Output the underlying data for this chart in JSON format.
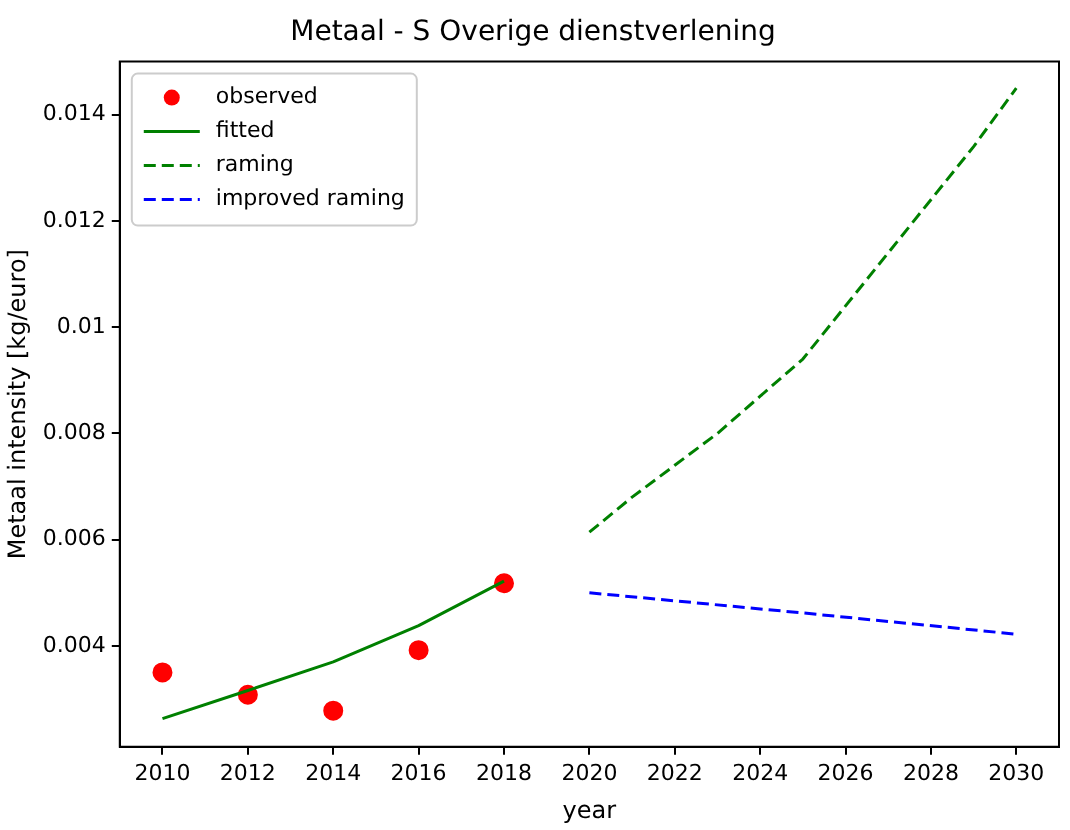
{
  "chart_data": {
    "type": "scatter",
    "title": "Metaal - S Overige dienstverlening",
    "xlabel": "year",
    "ylabel": "Metaal intensity [kg/euro]",
    "xlim": [
      2009,
      2031
    ],
    "xticks": [
      2010,
      2012,
      2014,
      2016,
      2018,
      2020,
      2022,
      2024,
      2026,
      2028,
      2030
    ],
    "ylim": [
      0.0021,
      0.015
    ],
    "yticks": [
      0.004,
      0.006,
      0.008,
      0.01,
      0.012,
      0.014
    ],
    "grid": false,
    "legend": "top left",
    "series": [
      {
        "name": "observed",
        "type": "scatter",
        "marker": "circle",
        "color": "#ff0000",
        "x": [
          2010,
          2012,
          2014,
          2016,
          2018
        ],
        "values": [
          0.0035,
          0.00308,
          0.00278,
          0.00392,
          0.00518
        ]
      },
      {
        "name": "fitted",
        "type": "line",
        "line_style": "solid",
        "marker": "none",
        "color": "#008000",
        "x": [
          2010,
          2012,
          2014,
          2016,
          2018
        ],
        "values": [
          0.00263,
          0.00316,
          0.0037,
          0.00438,
          0.00522
        ]
      },
      {
        "name": "raming",
        "type": "line",
        "line_style": "dashed",
        "marker": "none",
        "color": "#008000",
        "x": [
          2020,
          2021,
          2022,
          2023,
          2024,
          2025,
          2026,
          2027,
          2028,
          2029,
          2030
        ],
        "values": [
          0.00614,
          0.0068,
          0.0074,
          0.008,
          0.0087,
          0.0094,
          0.0104,
          0.0114,
          0.0124,
          0.0134,
          0.0145
        ]
      },
      {
        "name": "improved raming",
        "type": "line",
        "line_style": "dashed",
        "marker": "none",
        "color": "#0000ff",
        "x": [
          2020,
          2025,
          2030
        ],
        "values": [
          0.005,
          0.00462,
          0.00422
        ]
      }
    ]
  }
}
